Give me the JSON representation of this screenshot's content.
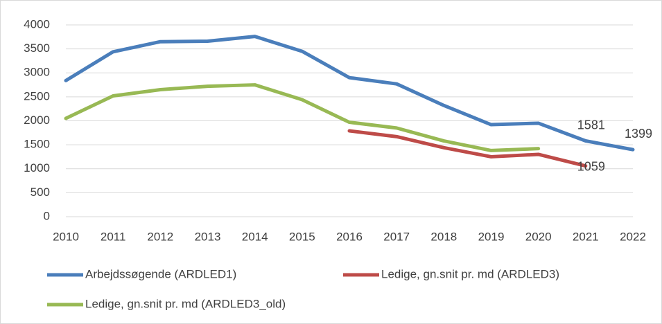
{
  "chart_data": {
    "type": "line",
    "categories": [
      "2010",
      "2011",
      "2012",
      "2013",
      "2014",
      "2015",
      "2016",
      "2017",
      "2018",
      "2019",
      "2020",
      "2021",
      "2022"
    ],
    "series": [
      {
        "name": "Arbejdssøgende (ARDLED1)",
        "color": "#4a7ebb",
        "values": [
          2840,
          3440,
          3650,
          3660,
          3760,
          3450,
          2900,
          2770,
          2320,
          1920,
          1950,
          1581,
          1399
        ],
        "value_labels": [
          null,
          null,
          null,
          null,
          null,
          null,
          null,
          null,
          null,
          null,
          null,
          "1581",
          "1399"
        ]
      },
      {
        "name": "Ledige, gn.snit pr. md (ARDLED3)",
        "color": "#be4b48",
        "values": [
          null,
          null,
          null,
          null,
          null,
          null,
          1790,
          1670,
          1440,
          1250,
          1300,
          1059,
          null
        ],
        "value_labels": [
          null,
          null,
          null,
          null,
          null,
          null,
          null,
          null,
          null,
          null,
          null,
          "1059",
          null
        ]
      },
      {
        "name": "Ledige, gn.snit pr. md (ARDLED3_old)",
        "color": "#98b954",
        "values": [
          2050,
          2520,
          2650,
          2720,
          2750,
          2440,
          1970,
          1850,
          1580,
          1380,
          1420,
          null,
          null
        ]
      }
    ],
    "ylim": [
      0,
      4000
    ],
    "yticks": [
      0,
      500,
      1000,
      1500,
      2000,
      2500,
      3000,
      3500,
      4000
    ],
    "grid": true,
    "legend": "bottom"
  }
}
